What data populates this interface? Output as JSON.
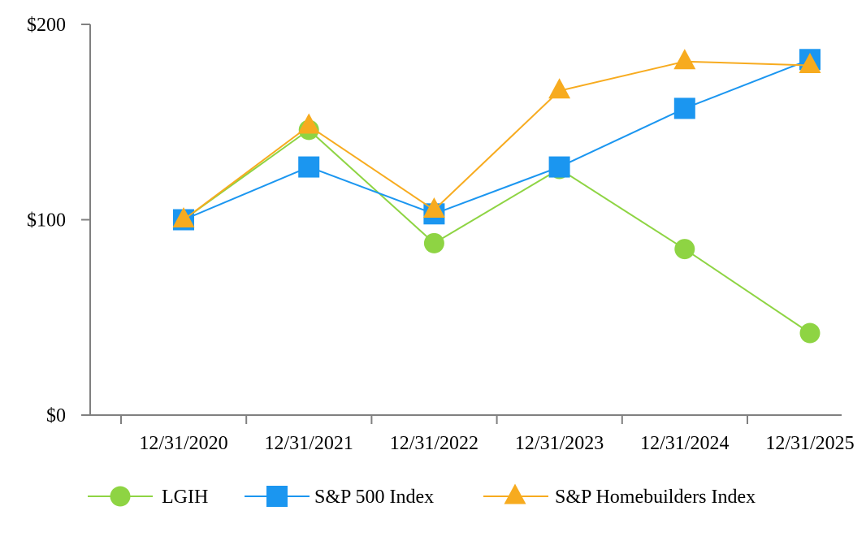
{
  "chart_data": {
    "type": "line",
    "title": "",
    "xlabel": "",
    "ylabel": "",
    "categories": [
      "12/31/2020",
      "12/31/2021",
      "12/31/2022",
      "12/31/2023",
      "12/31/2024",
      "12/31/2025"
    ],
    "y_ticks": [
      "$0",
      "$100",
      "$200"
    ],
    "y_tick_values": [
      0,
      100,
      200
    ],
    "ylim": [
      0,
      200
    ],
    "grid": false,
    "legend_position": "bottom",
    "series": [
      {
        "name": "LGIH",
        "color": "#8ed443",
        "marker": "circle",
        "values": [
          100,
          146,
          88,
          126,
          85,
          42
        ]
      },
      {
        "name": "S&P 500 Index",
        "color": "#1b96f0",
        "marker": "square",
        "values": [
          100,
          127,
          103,
          127,
          157,
          182
        ]
      },
      {
        "name": "S&P Homebuilders Index",
        "color": "#f7ab1f",
        "marker": "triangle",
        "values": [
          100,
          148,
          105,
          166,
          181,
          179
        ]
      }
    ]
  }
}
